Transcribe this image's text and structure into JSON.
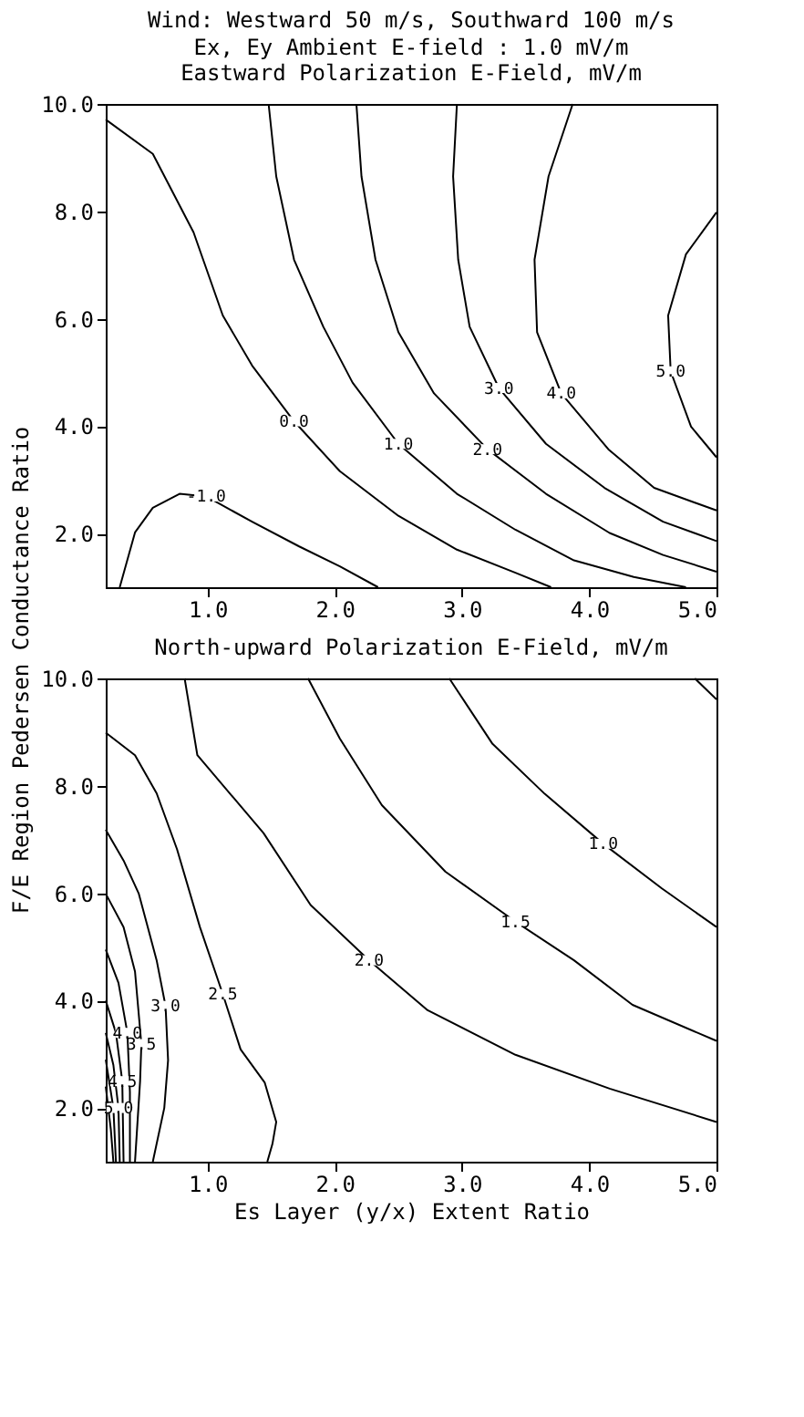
{
  "chart_data": [
    {
      "type": "line",
      "title": "Wind: Westward 50 m/s, Southward 100 m/s",
      "subtitle": "Ex, Ey Ambient E-field : 1.0 mV/m",
      "annotations": [
        "Eastward Polarization E-Field, mV/m"
      ],
      "ylabel": "F/E Region Pedersen Conductance Ratio",
      "legend": false,
      "grid": false,
      "marker": "none",
      "line_style": "solid",
      "xlim": [
        0.2,
        5.0
      ],
      "ylim": [
        1.0,
        10.0
      ],
      "xticks": [
        {
          "value": 1,
          "label": "1.0"
        },
        {
          "value": 2,
          "label": "2.0"
        },
        {
          "value": 3,
          "label": "3.0"
        },
        {
          "value": 4,
          "label": "4.0"
        },
        {
          "value": 5,
          "label": "5.0"
        }
      ],
      "yticks": [
        {
          "value": 2,
          "label": "2.0"
        },
        {
          "value": 4,
          "label": "4.0"
        },
        {
          "value": 6,
          "label": "6.0"
        },
        {
          "value": 8,
          "label": "8.0"
        },
        {
          "value": 10,
          "label": "10.0"
        }
      ],
      "series": [
        {
          "name": "-1.0",
          "color": "#000000",
          "x": [
            0.31,
            0.43,
            0.57,
            0.78,
            0.99,
            1.35,
            1.72,
            2.04,
            2.34
          ],
          "values": [
            1.0,
            2.02,
            2.48,
            2.74,
            2.69,
            2.22,
            1.76,
            1.39,
            1.0
          ]
        },
        {
          "name": "0.0",
          "color": "#000000",
          "x": [
            0.2,
            0.57,
            0.89,
            1.12,
            1.35,
            1.68,
            2.04,
            2.5,
            2.96,
            3.42,
            3.7
          ],
          "values": [
            9.71,
            9.07,
            7.61,
            6.06,
            5.13,
            4.09,
            3.16,
            2.33,
            1.7,
            1.27,
            1.0
          ]
        },
        {
          "name": "1.0",
          "color": "#000000",
          "x": [
            1.48,
            1.54,
            1.68,
            1.91,
            2.14,
            2.5,
            2.96,
            3.42,
            3.88,
            4.35,
            4.76
          ],
          "values": [
            10.0,
            8.65,
            7.1,
            5.85,
            4.81,
            3.67,
            2.74,
            2.07,
            1.5,
            1.19,
            1.0
          ]
        },
        {
          "name": "2.0",
          "color": "#000000",
          "x": [
            2.17,
            2.21,
            2.32,
            2.5,
            2.78,
            3.2,
            3.66,
            4.16,
            4.58,
            5.0
          ],
          "values": [
            10.0,
            8.65,
            7.1,
            5.75,
            4.61,
            3.57,
            2.74,
            2.01,
            1.6,
            1.29
          ]
        },
        {
          "name": "3.0",
          "color": "#000000",
          "x": [
            2.96,
            2.93,
            2.97,
            3.06,
            3.29,
            3.66,
            4.12,
            4.58,
            5.0
          ],
          "values": [
            10.0,
            8.65,
            7.1,
            5.85,
            4.71,
            3.67,
            2.85,
            2.22,
            1.86
          ]
        },
        {
          "name": "4.0",
          "color": "#000000",
          "x": [
            3.87,
            3.68,
            3.57,
            3.59,
            3.78,
            4.15,
            4.51,
            5.0
          ],
          "values": [
            10.0,
            8.65,
            7.1,
            5.75,
            4.61,
            3.57,
            2.85,
            2.43
          ]
        },
        {
          "name": "5.0",
          "color": "#000000",
          "x": [
            5.0,
            4.76,
            4.62,
            4.64,
            4.8,
            5.0
          ],
          "values": [
            7.98,
            7.2,
            6.06,
            5.02,
            3.99,
            3.42
          ]
        }
      ]
    },
    {
      "type": "line",
      "title": "North-upward Polarization E-Field, mV/m",
      "xlabel": "Es Layer (y/x) Extent Ratio",
      "legend": false,
      "grid": false,
      "marker": "none",
      "line_style": "solid",
      "xlim": [
        0.2,
        5.0
      ],
      "ylim": [
        1.0,
        10.0
      ],
      "xticks": [
        {
          "value": 1,
          "label": "1.0"
        },
        {
          "value": 2,
          "label": "2.0"
        },
        {
          "value": 3,
          "label": "3.0"
        },
        {
          "value": 4,
          "label": "4.0"
        },
        {
          "value": 5,
          "label": "5.0"
        }
      ],
      "yticks": [
        {
          "value": 2,
          "label": "2.0"
        },
        {
          "value": 4,
          "label": "4.0"
        },
        {
          "value": 6,
          "label": "6.0"
        },
        {
          "value": 8,
          "label": "8.0"
        },
        {
          "value": 10,
          "label": "10.0"
        }
      ],
      "series": [
        {
          "color": "#000000",
          "x": [
            4.83,
            5.0
          ],
          "values": [
            10.0,
            9.61
          ]
        },
        {
          "name": "1.0",
          "color": "#000000",
          "x": [
            2.9,
            3.24,
            3.65,
            4.11,
            4.57,
            5.0
          ],
          "values": [
            10.0,
            8.78,
            7.85,
            6.92,
            6.09,
            5.37
          ]
        },
        {
          "name": "1.5",
          "color": "#000000",
          "x": [
            1.79,
            2.04,
            2.37,
            2.87,
            3.42,
            3.88,
            4.34,
            5.0
          ],
          "values": [
            10.0,
            8.88,
            7.64,
            6.4,
            5.47,
            4.75,
            3.92,
            3.25
          ]
        },
        {
          "name": "2.0",
          "color": "#000000",
          "x": [
            0.82,
            0.92,
            1.44,
            1.81,
            2.27,
            2.73,
            3.42,
            4.16,
            5.0
          ],
          "values": [
            10.0,
            8.57,
            7.12,
            5.78,
            4.75,
            3.82,
            2.99,
            2.36,
            1.74
          ]
        },
        {
          "name": "2.5",
          "color": "#000000",
          "x": [
            0.2,
            0.43,
            0.6,
            0.76,
            0.94,
            1.12,
            1.26,
            1.45,
            1.54,
            1.51,
            1.47
          ],
          "values": [
            8.99,
            8.57,
            7.86,
            6.82,
            5.37,
            4.12,
            3.09,
            2.47,
            1.74,
            1.33,
            1.0
          ]
        },
        {
          "name": "3.0",
          "color": "#000000",
          "x": [
            0.2,
            0.34,
            0.46,
            0.6,
            0.67,
            0.69,
            0.66,
            0.57
          ],
          "values": [
            7.18,
            6.61,
            5.99,
            4.75,
            3.9,
            2.89,
            2.0,
            1.0
          ]
        },
        {
          "name": "3.5",
          "color": "#000000",
          "x": [
            0.2,
            0.34,
            0.43,
            0.48,
            0.47,
            0.43
          ],
          "values": [
            5.99,
            5.37,
            4.54,
            3.19,
            2.5,
            1.0
          ]
        },
        {
          "name": "4.0",
          "color": "#000000",
          "x": [
            0.2,
            0.3,
            0.37,
            0.39,
            0.39
          ],
          "values": [
            4.95,
            4.33,
            3.4,
            2.3,
            1.0
          ]
        },
        {
          "name": "4.5",
          "color": "#000000",
          "x": [
            0.2,
            0.28,
            0.33,
            0.34
          ],
          "values": [
            4.0,
            3.4,
            2.5,
            1.0
          ]
        },
        {
          "name": "5.0",
          "color": "#000000",
          "x": [
            0.2,
            0.26,
            0.3,
            0.31
          ],
          "values": [
            3.4,
            2.8,
            2.0,
            1.0
          ]
        },
        {
          "color": "#000000",
          "x": [
            0.2,
            0.26,
            0.28
          ],
          "values": [
            2.9,
            2.0,
            1.0
          ]
        },
        {
          "color": "#000000",
          "x": [
            0.2,
            0.24,
            0.26
          ],
          "values": [
            2.4,
            1.6,
            1.0
          ]
        }
      ]
    }
  ]
}
